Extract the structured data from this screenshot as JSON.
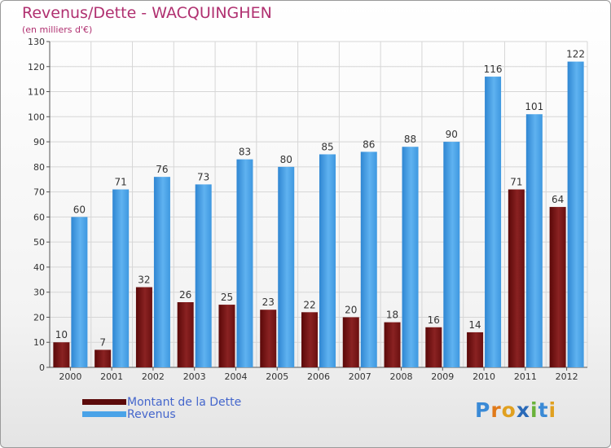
{
  "header": {
    "title": "Revenus/Dette - WACQUINGHEN",
    "subtitle": "(en milliers d'€)"
  },
  "chart_data": {
    "type": "bar",
    "categories": [
      "2000",
      "2001",
      "2002",
      "2003",
      "2004",
      "2005",
      "2006",
      "2007",
      "2008",
      "2009",
      "2010",
      "2011",
      "2012"
    ],
    "series": [
      {
        "name": "Montant de la Dette",
        "color": "#7a1414",
        "values": [
          10,
          7,
          32,
          26,
          25,
          23,
          22,
          20,
          18,
          16,
          14,
          71,
          64
        ]
      },
      {
        "name": "Revenus",
        "color": "#4aa3e8",
        "values": [
          60,
          71,
          76,
          73,
          83,
          80,
          85,
          86,
          88,
          90,
          116,
          101,
          122
        ]
      }
    ],
    "ylim": [
      0,
      130
    ],
    "ytick_step": 10,
    "grid": true,
    "legend_position": "bottom-left"
  },
  "legend": {
    "items": [
      {
        "label": "Montant de la Dette",
        "color": "#5c0a0a"
      },
      {
        "label": "Revenus",
        "color": "#4aa3e8"
      }
    ]
  },
  "logo": {
    "text": "Proxiti",
    "letter_colors": [
      "#3a8ad6",
      "#e07a1a",
      "#e0a020",
      "#2a6ab8",
      "#6ab23a",
      "#3a8ad6",
      "#e0a020"
    ]
  }
}
